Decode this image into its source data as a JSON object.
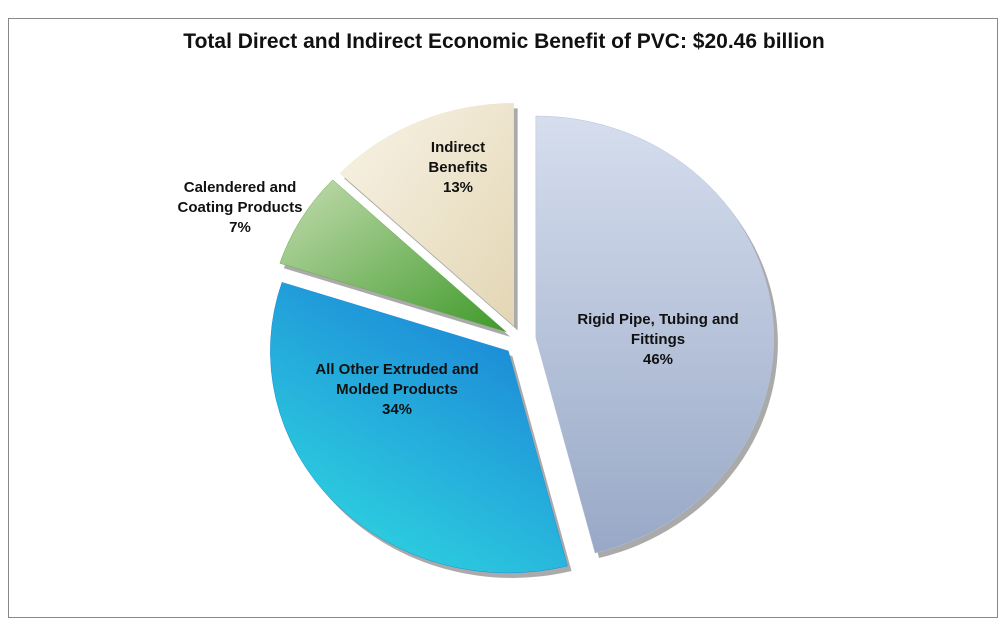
{
  "chart_data": {
    "type": "pie",
    "title": "Total Direct and Indirect Economic Benefit of PVC: $20.46 billion",
    "categories": [
      "Rigid Pipe, Tubing and Fittings",
      "All Other Extruded and Molded Products",
      "Calendered and Coating Products",
      "Indirect Benefits"
    ],
    "values": [
      46,
      34,
      7,
      13
    ],
    "value_labels": [
      "46%",
      "34%",
      "7%",
      "13%"
    ],
    "colors": [
      "#b4c2dc",
      "#1e8fd8",
      "#6aa84f",
      "#efe5cc"
    ]
  }
}
